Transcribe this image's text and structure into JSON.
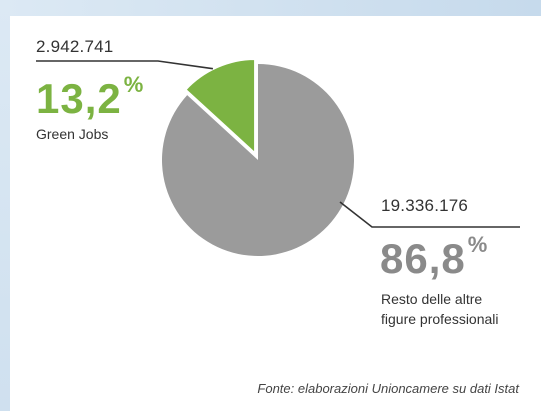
{
  "chart_data": {
    "type": "pie",
    "slices": [
      {
        "label": "Green Jobs",
        "count_label": "2.942.741",
        "percent_label": "13,2",
        "percent_symbol": "%",
        "value": 13.2,
        "color": "#7cb342"
      },
      {
        "label_line1": "Resto delle altre",
        "label_line2": "figure professionali",
        "count_label": "19.336.176",
        "percent_label": "86,8",
        "percent_symbol": "%",
        "value": 86.8,
        "color": "#9b9b9b"
      }
    ]
  },
  "source_note": "Fonte: elaborazioni Unioncamere su dati Istat",
  "colors": {
    "green_accent": "#7cb342",
    "gray_slice": "#9b9b9b",
    "gray_percent": "#8a8a8a",
    "leader_line": "#333333"
  }
}
